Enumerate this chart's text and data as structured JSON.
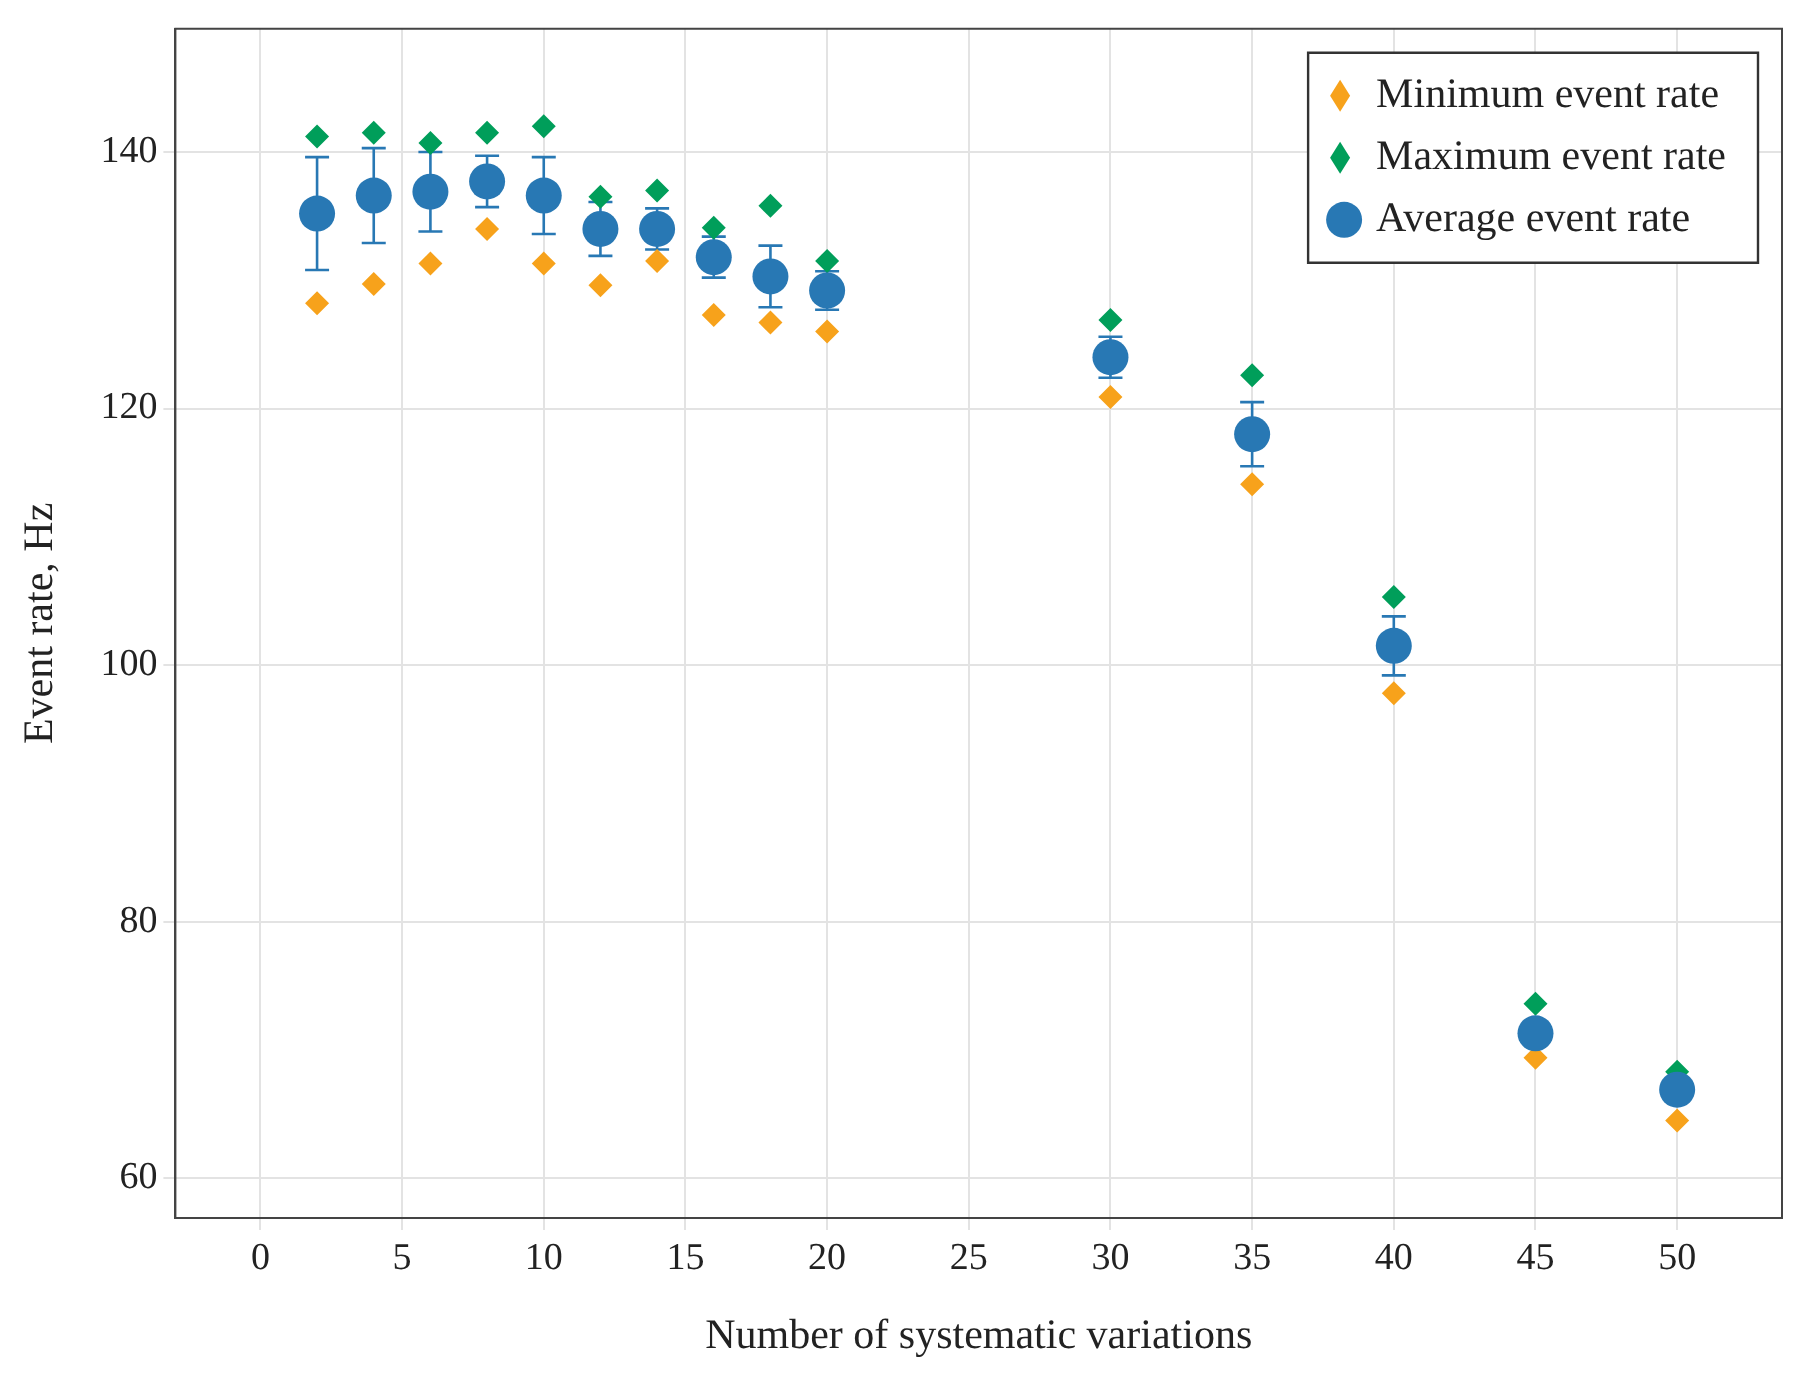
{
  "chart_data": {
    "type": "scatter",
    "xlabel": "Number of systematic variations",
    "ylabel": "Event rate, Hz",
    "x": [
      2,
      4,
      6,
      8,
      10,
      12,
      14,
      16,
      18,
      20,
      30,
      35,
      40,
      45,
      50
    ],
    "series": [
      {
        "name": "Minimum event rate",
        "color": "#f7a21b",
        "marker": "diamond",
        "values": [
          128.2,
          129.7,
          131.3,
          134.0,
          131.3,
          129.6,
          131.5,
          127.3,
          126.7,
          126.0,
          120.9,
          114.1,
          97.8,
          69.4,
          64.5
        ]
      },
      {
        "name": "Maximum event rate",
        "color": "#009e5a",
        "marker": "diamond",
        "values": [
          141.2,
          141.5,
          140.7,
          141.5,
          142.0,
          136.5,
          137.0,
          134.1,
          135.8,
          131.5,
          126.9,
          122.6,
          105.3,
          73.6,
          68.3
        ]
      },
      {
        "name": "Average event rate",
        "color": "#2878b4",
        "marker": "circle",
        "values": [
          135.2,
          136.6,
          136.9,
          137.7,
          136.6,
          134.0,
          134.0,
          131.8,
          130.3,
          129.2,
          124.0,
          118.0,
          101.5,
          71.3,
          66.9
        ],
        "errors": [
          4.4,
          3.7,
          3.1,
          2.0,
          3.0,
          2.1,
          1.6,
          1.6,
          2.4,
          1.5,
          1.6,
          2.5,
          2.3,
          0.5,
          0.3
        ]
      }
    ],
    "xlim": [
      -3,
      53.7
    ],
    "xticks": [
      0,
      5,
      10,
      15,
      20,
      25,
      30,
      35,
      40,
      45,
      50
    ],
    "ylim": [
      56.9,
      149.6
    ],
    "yticks": [
      60,
      80,
      100,
      120,
      140
    ],
    "grid": true,
    "legend": "top right"
  }
}
